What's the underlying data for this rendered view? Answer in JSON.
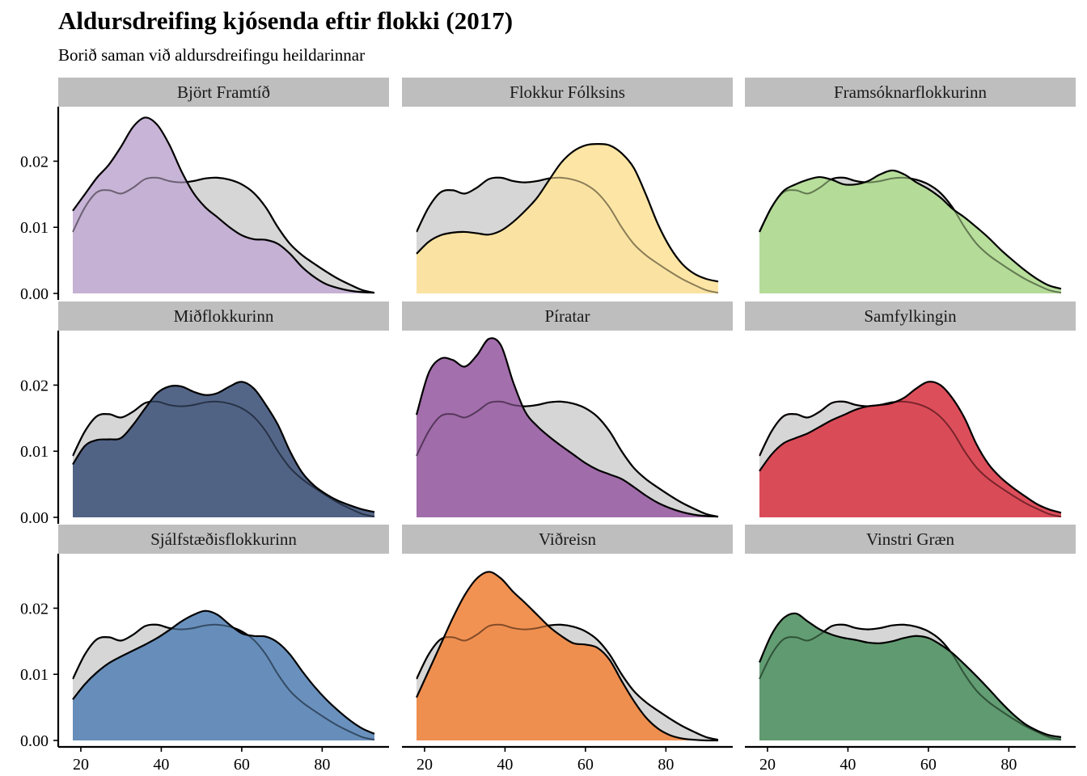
{
  "title": "Aldursdreifing kjósenda eftir flokki (2017)",
  "subtitle": "Borið saman við aldursdreifingu heildarinnar",
  "chart_data": {
    "type": "area",
    "title": "Aldursdreifing kjósenda eftir flokki (2017)",
    "subtitle": "Borið saman við aldursdreifingu heildarinnar",
    "xlabel": "",
    "ylabel": "",
    "xlim": [
      18,
      93
    ],
    "ylim": [
      0,
      0.028
    ],
    "x_ticks": [
      20,
      40,
      60,
      80
    ],
    "y_ticks": [
      0.0,
      0.01,
      0.02
    ],
    "x_tick_labels": [
      "20",
      "40",
      "60",
      "80"
    ],
    "y_tick_labels": [
      "0.00",
      "0.01",
      "0.02"
    ],
    "grid": false,
    "x": [
      18,
      21,
      24,
      27,
      30,
      33,
      36,
      39,
      42,
      45,
      48,
      51,
      54,
      57,
      60,
      63,
      66,
      69,
      72,
      75,
      78,
      81,
      84,
      87,
      90,
      93
    ],
    "overall_color": "#d6d6d6",
    "overall_values": [
      0.0093,
      0.013,
      0.0153,
      0.0156,
      0.0151,
      0.016,
      0.0173,
      0.0175,
      0.017,
      0.0168,
      0.017,
      0.0174,
      0.0175,
      0.0172,
      0.0165,
      0.0152,
      0.013,
      0.01,
      0.0075,
      0.0058,
      0.0045,
      0.0033,
      0.0022,
      0.0013,
      0.0005,
      0.0001
    ],
    "panels": [
      {
        "name": "Björt Framtíð",
        "color": "#c4aed3",
        "values": [
          0.0125,
          0.015,
          0.0175,
          0.0195,
          0.0222,
          0.0252,
          0.0266,
          0.0255,
          0.0225,
          0.0185,
          0.0152,
          0.013,
          0.0115,
          0.01,
          0.0088,
          0.0082,
          0.0081,
          0.0075,
          0.006,
          0.004,
          0.0025,
          0.0014,
          0.0008,
          0.0004,
          0.0002,
          0.0001
        ]
      },
      {
        "name": "Flokkur Fólksins",
        "color": "#fde49e",
        "values": [
          0.006,
          0.0078,
          0.0088,
          0.0092,
          0.0093,
          0.0091,
          0.0089,
          0.0095,
          0.0108,
          0.0125,
          0.0145,
          0.0172,
          0.0198,
          0.0215,
          0.0224,
          0.0226,
          0.0224,
          0.0212,
          0.019,
          0.015,
          0.0105,
          0.007,
          0.0045,
          0.003,
          0.0022,
          0.0018
        ]
      },
      {
        "name": "Framsóknarflokkurinn",
        "color": "#b2dc93",
        "values": [
          0.0093,
          0.013,
          0.0155,
          0.0165,
          0.0172,
          0.0176,
          0.0172,
          0.0165,
          0.0165,
          0.017,
          0.018,
          0.0186,
          0.018,
          0.0168,
          0.0158,
          0.0145,
          0.0128,
          0.0115,
          0.01,
          0.0084,
          0.0066,
          0.005,
          0.0035,
          0.0022,
          0.0012,
          0.0007
        ]
      },
      {
        "name": "Miðflokkurinn",
        "color": "#475a7f",
        "values": [
          0.008,
          0.0108,
          0.0117,
          0.0118,
          0.012,
          0.014,
          0.0165,
          0.0188,
          0.0198,
          0.0198,
          0.019,
          0.0185,
          0.0188,
          0.0198,
          0.0205,
          0.0195,
          0.017,
          0.014,
          0.01,
          0.0068,
          0.0048,
          0.0035,
          0.0025,
          0.0018,
          0.0012,
          0.0008
        ]
      },
      {
        "name": "Píratar",
        "color": "#9d64a7",
        "values": [
          0.0155,
          0.0218,
          0.024,
          0.0238,
          0.0228,
          0.0245,
          0.027,
          0.026,
          0.0205,
          0.016,
          0.0138,
          0.0122,
          0.0108,
          0.0095,
          0.0082,
          0.0072,
          0.0065,
          0.0058,
          0.0046,
          0.0033,
          0.0022,
          0.0014,
          0.0008,
          0.0004,
          0.0002,
          0.0001
        ]
      },
      {
        "name": "Samfylkingin",
        "color": "#da414f",
        "values": [
          0.007,
          0.0095,
          0.0112,
          0.012,
          0.0127,
          0.0137,
          0.0147,
          0.0155,
          0.0163,
          0.0168,
          0.017,
          0.0173,
          0.0181,
          0.0195,
          0.0205,
          0.02,
          0.018,
          0.015,
          0.011,
          0.008,
          0.006,
          0.0045,
          0.0032,
          0.002,
          0.0012,
          0.0007
        ]
      },
      {
        "name": "Sjálfstæðisflokkurinn",
        "color": "#5f89b8",
        "values": [
          0.0062,
          0.0085,
          0.0103,
          0.0117,
          0.0127,
          0.0136,
          0.0145,
          0.0155,
          0.0167,
          0.018,
          0.019,
          0.0196,
          0.019,
          0.0175,
          0.0162,
          0.0158,
          0.0157,
          0.0148,
          0.013,
          0.0105,
          0.0082,
          0.0062,
          0.0045,
          0.003,
          0.0018,
          0.001
        ]
      },
      {
        "name": "Viðreisn",
        "color": "#f08a46",
        "values": [
          0.0065,
          0.0105,
          0.0145,
          0.0185,
          0.022,
          0.0245,
          0.0255,
          0.0245,
          0.0225,
          0.0208,
          0.019,
          0.0172,
          0.0158,
          0.0147,
          0.0145,
          0.014,
          0.0122,
          0.009,
          0.006,
          0.0035,
          0.0018,
          0.0008,
          0.0003,
          0.0001,
          0.0,
          0.0
        ]
      },
      {
        "name": "Vinstri Græn",
        "color": "#579668",
        "values": [
          0.0118,
          0.016,
          0.0185,
          0.0192,
          0.018,
          0.0168,
          0.016,
          0.0155,
          0.0152,
          0.0148,
          0.0147,
          0.015,
          0.0155,
          0.0158,
          0.0155,
          0.0145,
          0.0132,
          0.0115,
          0.0097,
          0.0078,
          0.0058,
          0.004,
          0.0025,
          0.0015,
          0.0008,
          0.0005
        ]
      }
    ]
  }
}
